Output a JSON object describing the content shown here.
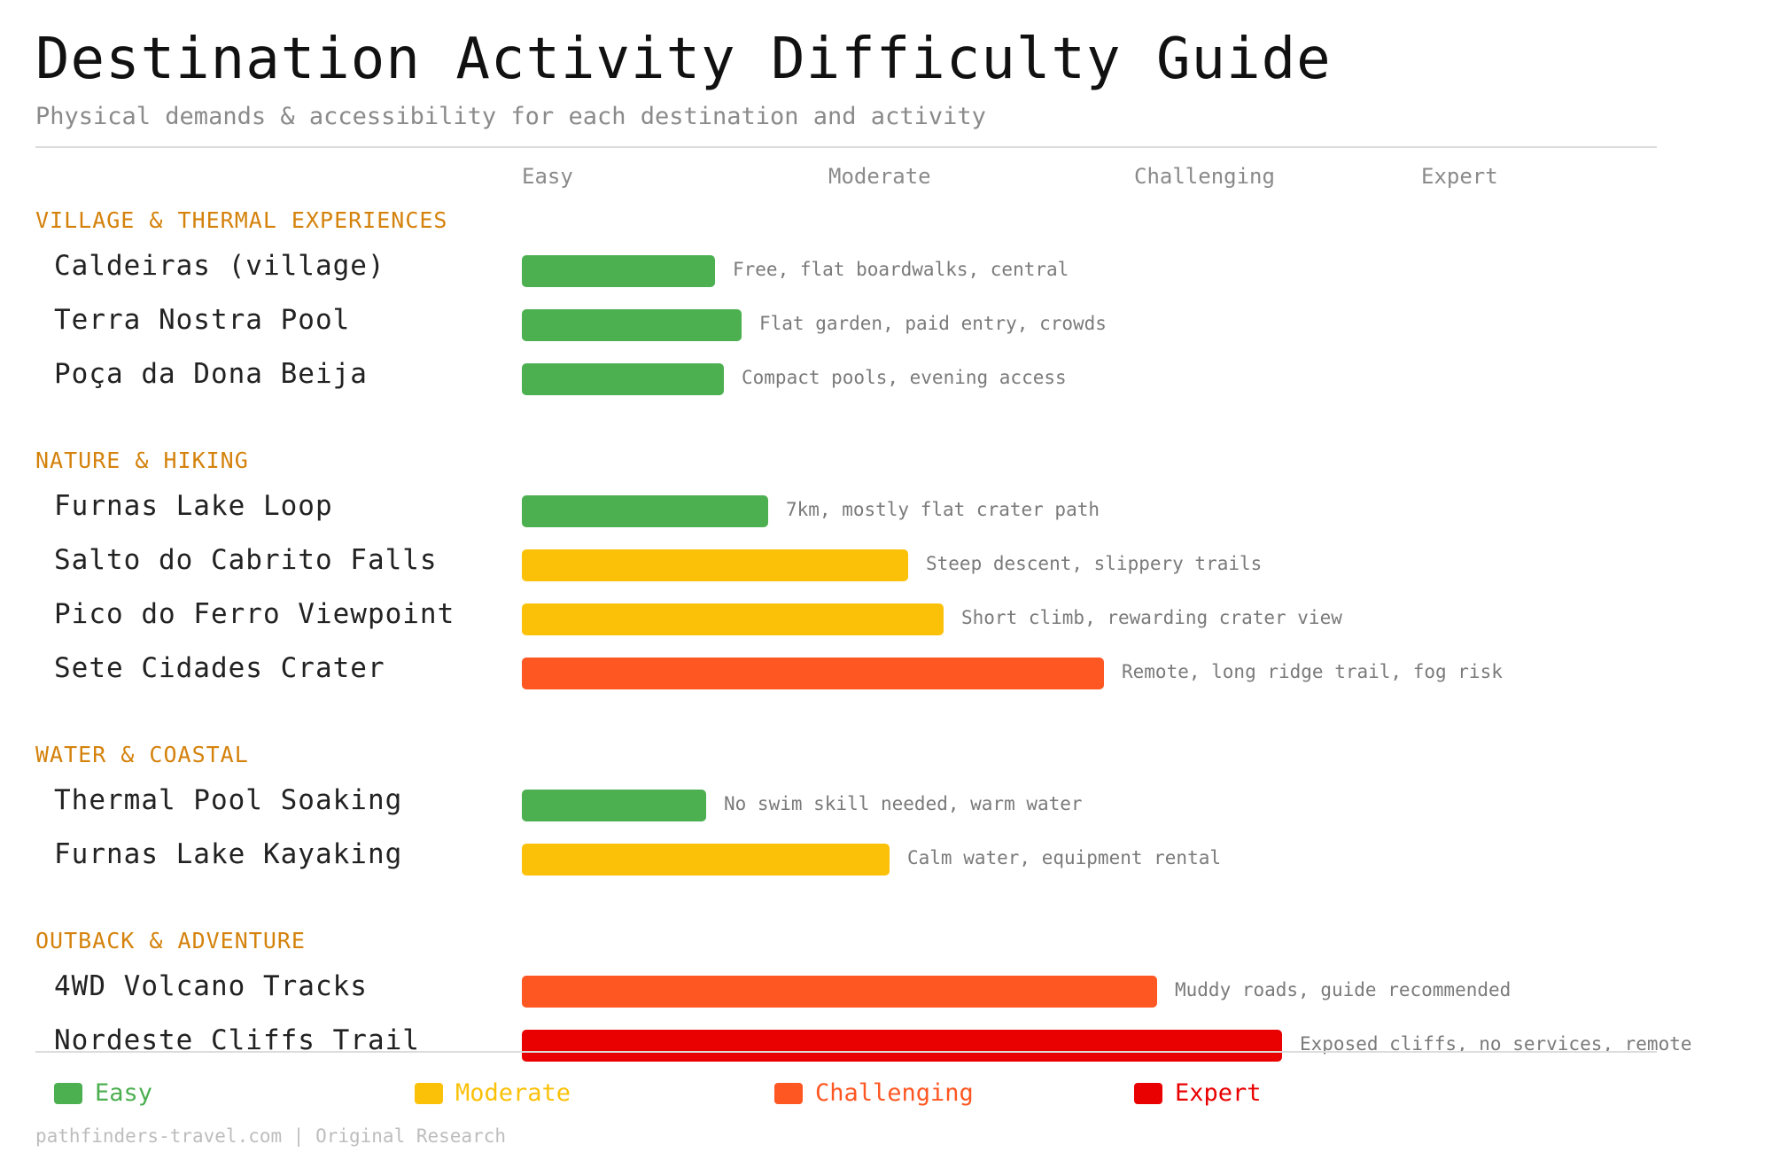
{
  "title": "Destination Activity Difficulty Guide",
  "subtitle": "Physical demands & accessibility for each destination and activity",
  "footer": "pathfinders-travel.com | Original Research",
  "colors": {
    "Easy": "#4caf50",
    "Moderate": "#fbc108",
    "Challenging": "#ff5722",
    "Expert": "#e90000",
    "section": "#d4820c"
  },
  "chart_data": {
    "type": "bar",
    "orientation": "horizontal",
    "scale": [
      "Easy",
      "Moderate",
      "Challenging",
      "Expert"
    ],
    "xlim": [
      0,
      4
    ],
    "grid": false,
    "legend_position": "bottom",
    "groups": [
      {
        "name": "VILLAGE & THERMAL EXPERIENCES",
        "items": [
          {
            "label": "Caldeiras (village)",
            "value": 0.65,
            "level": "Easy",
            "note": "Free, flat boardwalks, central"
          },
          {
            "label": "Terra Nostra Pool",
            "value": 0.74,
            "level": "Easy",
            "note": "Flat garden, paid entry, crowds"
          },
          {
            "label": "Poça da Dona Beija",
            "value": 0.68,
            "level": "Easy",
            "note": "Compact pools, evening access"
          }
        ]
      },
      {
        "name": "NATURE & HIKING",
        "items": [
          {
            "label": "Furnas Lake Loop",
            "value": 0.83,
            "level": "Easy",
            "note": "7km, mostly flat crater path"
          },
          {
            "label": "Salto do Cabrito Falls",
            "value": 1.3,
            "level": "Moderate",
            "note": "Steep descent, slippery trails"
          },
          {
            "label": "Pico do Ferro Viewpoint",
            "value": 1.42,
            "level": "Moderate",
            "note": "Short climb, rewarding crater view"
          },
          {
            "label": "Sete Cidades Crater",
            "value": 1.96,
            "level": "Challenging",
            "note": "Remote, long ridge trail, fog risk"
          }
        ]
      },
      {
        "name": "WATER & COASTAL",
        "items": [
          {
            "label": "Thermal Pool Soaking",
            "value": 0.62,
            "level": "Easy",
            "note": "No swim skill needed, warm water"
          },
          {
            "label": "Furnas Lake Kayaking",
            "value": 1.24,
            "level": "Moderate",
            "note": "Calm water, equipment rental"
          }
        ]
      },
      {
        "name": "OUTBACK & ADVENTURE",
        "items": [
          {
            "label": "4WD Volcano Tracks",
            "value": 2.14,
            "level": "Challenging",
            "note": "Muddy roads, guide recommended"
          },
          {
            "label": "Nordeste Cliffs Trail",
            "value": 2.56,
            "level": "Expert",
            "note": "Exposed cliffs, no services, remote"
          }
        ]
      }
    ]
  }
}
